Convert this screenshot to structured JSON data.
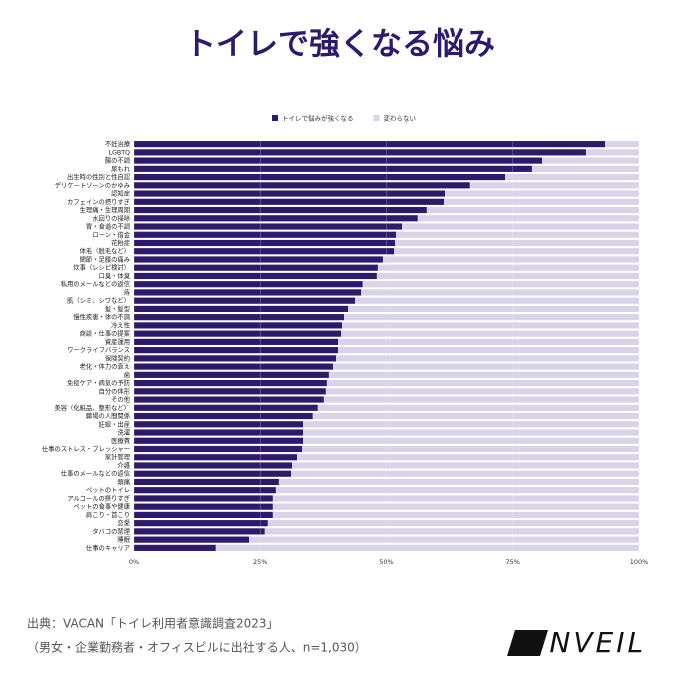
{
  "chart_data": {
    "type": "stacked_barh",
    "title": "トイレで強くなる悩み",
    "categories": [
      "不妊治療",
      "LGBTQ",
      "腸の不調",
      "尿もれ",
      "出生時の性別と性自認",
      "デリケートゾーンのかゆみ",
      "認知症",
      "カフェインの摂りすぎ",
      "生理痛・生理周期",
      "水回りの掃除",
      "胃・食道の不調",
      "ローン・借金",
      "花粉症",
      "体毛（脱毛など）",
      "関節・足腰の痛み",
      "炊事（レシピ検討）",
      "口臭・体臭",
      "私用のメールなどの返信",
      "痔",
      "肌（シミ、シワなど）",
      "髪・髪型",
      "慢性疾患・体の不調",
      "冷え性",
      "商談・仕事の提案",
      "資産運用",
      "ワークライフバランス",
      "保険契約",
      "老化・体力の衰え",
      "歯",
      "免疫ケア・病気の予防",
      "自分の体形",
      "その他",
      "美容（化粧品、整形など）",
      "職場の人間関係",
      "妊娠・出産",
      "洗濯",
      "医療費",
      "仕事のストレス・プレッシャー",
      "家計管理",
      "介護",
      "仕事のメールなどの返信",
      "頭痛",
      "ペットのトイレ",
      "アルコールの摂りすぎ",
      "ペットの食事や健康",
      "肩こり・首こり",
      "恋愛",
      "タバコの禁煙",
      "睡眠",
      "仕事のキャリア"
    ],
    "series": [
      {
        "name": "トイレで悩みが強くなる",
        "color": "#2e1a6b",
        "values": [
          93.3,
          89.5,
          80.8,
          78.8,
          73.5,
          66.5,
          61.6,
          61.4,
          58.0,
          56.2,
          53.1,
          51.9,
          51.7,
          51.5,
          49.3,
          48.3,
          48.1,
          45.3,
          45.0,
          43.8,
          42.4,
          41.6,
          41.2,
          41.0,
          40.4,
          40.4,
          40.0,
          39.4,
          38.6,
          38.2,
          38.0,
          37.6,
          36.4,
          35.4,
          33.5,
          33.5,
          33.5,
          33.3,
          32.3,
          31.3,
          31.1,
          28.7,
          28.1,
          27.5,
          27.5,
          27.5,
          26.5,
          25.9,
          22.8,
          16.2
        ]
      },
      {
        "name": "変わらない",
        "color": "#d8d3e8",
        "values": [
          6.7,
          10.5,
          19.2,
          21.2,
          26.5,
          33.5,
          38.4,
          38.6,
          42.0,
          43.8,
          46.9,
          48.1,
          48.3,
          48.5,
          50.7,
          51.7,
          51.9,
          54.7,
          55.0,
          56.2,
          57.6,
          58.4,
          58.8,
          59.0,
          59.6,
          59.6,
          60.0,
          60.6,
          61.4,
          61.8,
          62.0,
          62.4,
          63.6,
          64.6,
          66.5,
          66.5,
          66.5,
          66.7,
          67.7,
          68.7,
          68.9,
          71.3,
          71.9,
          72.5,
          72.5,
          72.5,
          73.5,
          74.1,
          77.2,
          83.8
        ]
      }
    ],
    "xlim": [
      0,
      100
    ],
    "xticks": [
      {
        "value": 0,
        "label": "0%"
      },
      {
        "value": 25,
        "label": "25%"
      },
      {
        "value": 50,
        "label": "50%"
      },
      {
        "value": 75,
        "label": "75%"
      },
      {
        "value": 100,
        "label": "100%"
      }
    ],
    "grid": true,
    "legend": "top"
  },
  "source": [
    "出典：VACAN「トイレ利用者意識調査2023」",
    "（男女・企業勤務者・オフィスビルに出社する人、n=1,030）"
  ],
  "logo": "UNVEIL"
}
